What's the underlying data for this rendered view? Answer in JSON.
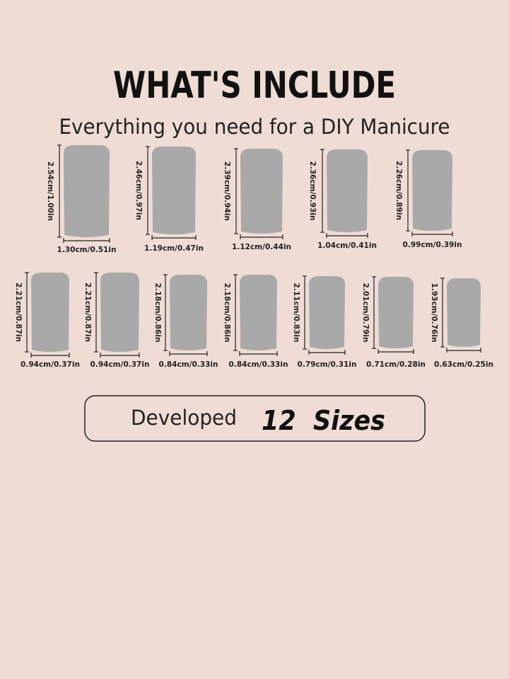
{
  "header": {
    "title": "WHAT'S INCLUDE",
    "subtitle": "Everything you need for a DIY Manicure"
  },
  "nails": [
    {
      "height": "2.54cm/1.00in",
      "width": "1.30cm/0.51in"
    },
    {
      "height": "2.46cm/0.97in",
      "width": "1.19cm/0.47in"
    },
    {
      "height": "2.39cm/0.94in",
      "width": "1.12cm/0.44in"
    },
    {
      "height": "2.36cm/0.93in",
      "width": "1.04cm/0.41in"
    },
    {
      "height": "2.26cm/0.89in",
      "width": "0.99cm/0.39in"
    },
    {
      "height": "2.21cm/0.87in",
      "width": "0.94cm/0.37in"
    },
    {
      "height": "2.21cm/0.87in",
      "width": "0.94cm/0.37in"
    },
    {
      "height": "2.18cm/0.86in",
      "width": "0.84cm/0.33in"
    },
    {
      "height": "2.18cm/0.86in",
      "width": "0.84cm/0.33in"
    },
    {
      "height": "2.11cm/0.83in",
      "width": "0.79cm/0.31in"
    },
    {
      "height": "2.01cm/0.79in",
      "width": "0.71cm/0.28in"
    },
    {
      "height": "1.93cm/0.76in",
      "width": "0.63cm/0.25in"
    }
  ],
  "banner": {
    "label": "Developed",
    "count": "12  Sizes"
  }
}
